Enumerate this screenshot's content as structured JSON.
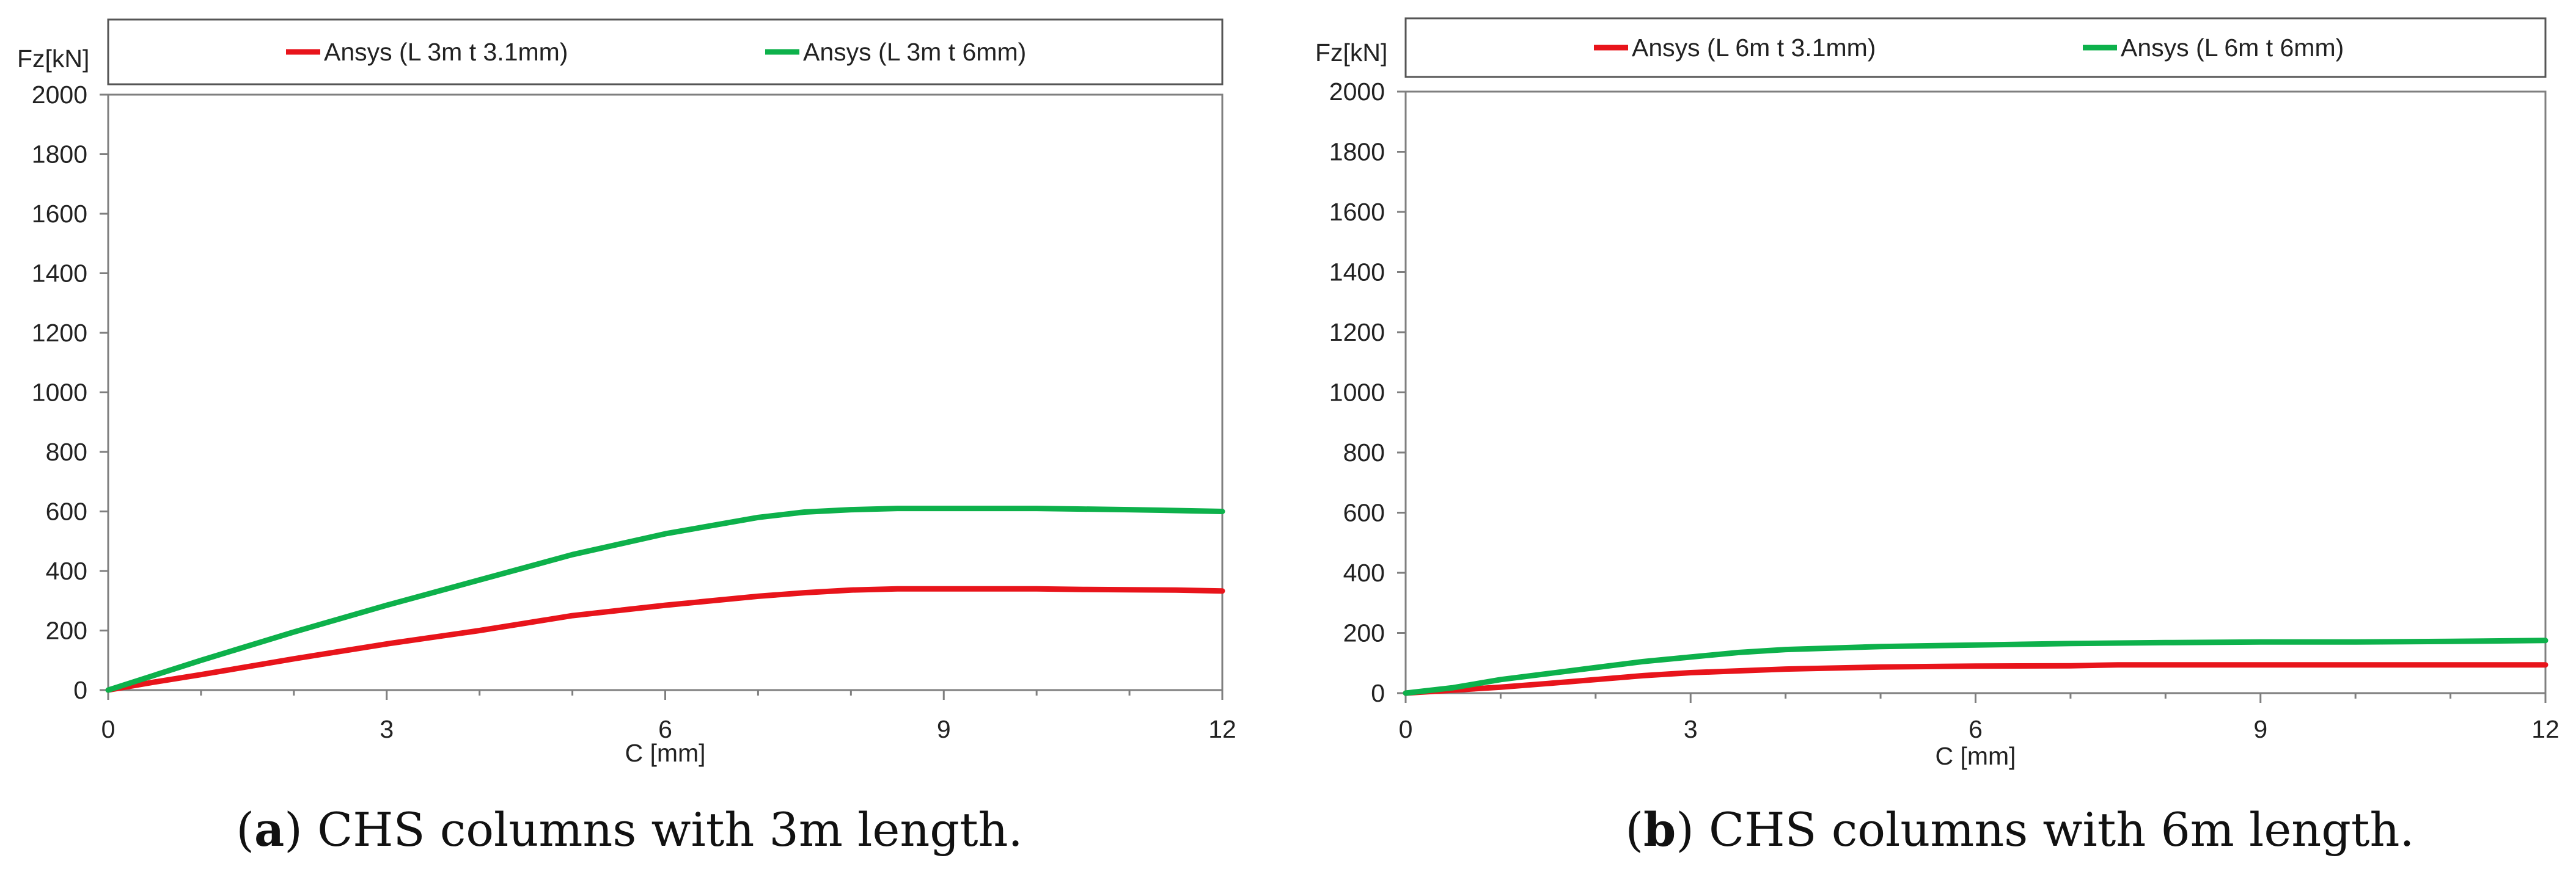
{
  "chart_data": [
    {
      "type": "line",
      "panel": "a",
      "caption_letter": "a",
      "caption_text": ") CHS columns with 3m length.",
      "caption_open": "(",
      "xlabel": "C [mm]",
      "ylabel": "Fz[kN]",
      "xlim": [
        0,
        12
      ],
      "ylim": [
        0,
        2000
      ],
      "xticks": [
        0,
        3,
        6,
        9,
        12
      ],
      "yticks": [
        0,
        200,
        400,
        600,
        800,
        1000,
        1200,
        1400,
        1600,
        1800,
        2000
      ],
      "legend_position": "top",
      "series": [
        {
          "name": "Ansys (L 3m t 3.1mm)",
          "color": "#e8141b",
          "x": [
            0,
            0.5,
            1,
            2,
            3,
            4,
            5,
            6,
            7,
            7.5,
            8,
            8.5,
            9,
            10,
            10.5,
            11,
            11.5,
            12
          ],
          "y": [
            0,
            27,
            52,
            105,
            155,
            200,
            250,
            285,
            315,
            327,
            336,
            340,
            340,
            340,
            338,
            337,
            336,
            333
          ]
        },
        {
          "name": "Ansys (L 3m t 6mm)",
          "color": "#0db14b",
          "x": [
            0,
            0.5,
            1,
            2,
            3,
            4,
            5,
            6,
            7,
            7.5,
            8,
            8.5,
            9,
            10,
            10.5,
            11,
            11.5,
            12
          ],
          "y": [
            0,
            50,
            100,
            195,
            285,
            370,
            455,
            525,
            580,
            598,
            606,
            610,
            610,
            610,
            608,
            606,
            603,
            600
          ]
        }
      ]
    },
    {
      "type": "line",
      "panel": "b",
      "caption_letter": "b",
      "caption_text": ") CHS columns with 6m length.",
      "caption_open": "(",
      "xlabel": "C [mm]",
      "ylabel": "Fz[kN]",
      "xlim": [
        0,
        12
      ],
      "ylim": [
        0,
        2000
      ],
      "xticks": [
        0,
        3,
        6,
        9,
        12
      ],
      "yticks": [
        0,
        200,
        400,
        600,
        800,
        1000,
        1200,
        1400,
        1600,
        1800,
        2000
      ],
      "legend_position": "top",
      "series": [
        {
          "name": "Ansys (L 6m t 3.1mm)",
          "color": "#e8141b",
          "x": [
            0,
            0.5,
            1,
            1.5,
            2,
            2.5,
            3,
            4,
            5,
            6,
            7,
            7.5,
            8,
            9,
            10,
            11,
            12
          ],
          "y": [
            0,
            10,
            20,
            32,
            45,
            58,
            68,
            80,
            87,
            90,
            91,
            94,
            94,
            94,
            94,
            94,
            94
          ]
        },
        {
          "name": "Ansys (L 6m t 6mm)",
          "color": "#0db14b",
          "x": [
            0,
            0.5,
            1,
            1.5,
            2,
            2.5,
            3,
            3.5,
            4,
            5,
            6,
            7,
            8,
            9,
            10,
            11,
            12
          ],
          "y": [
            0,
            18,
            45,
            65,
            85,
            105,
            120,
            135,
            145,
            155,
            160,
            165,
            168,
            170,
            170,
            172,
            175
          ]
        }
      ]
    }
  ]
}
